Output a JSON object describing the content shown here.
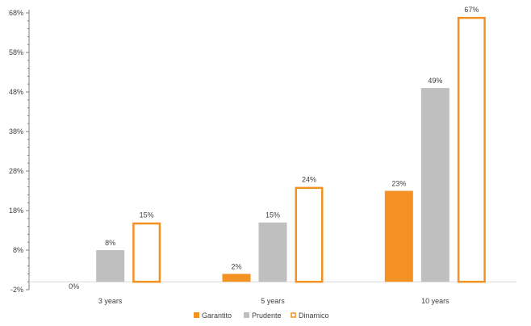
{
  "chart_data": {
    "type": "bar",
    "categories": [
      "3 years",
      "5 years",
      "10 years"
    ],
    "series": [
      {
        "name": "Garantito",
        "values": [
          0,
          2,
          23
        ],
        "labels": [
          "0%",
          "2%",
          "23%"
        ],
        "style": "solid",
        "color": "#F39222"
      },
      {
        "name": "Prudente",
        "values": [
          8,
          15,
          49
        ],
        "labels": [
          "8%",
          "15%",
          "49%"
        ],
        "style": "solid",
        "color": "#BFBFBF"
      },
      {
        "name": "Dinamico",
        "values": [
          15,
          24,
          67
        ],
        "labels": [
          "15%",
          "24%",
          "67%"
        ],
        "style": "outline",
        "color": "#F39222"
      }
    ],
    "y_ticks": [
      -2,
      8,
      18,
      28,
      38,
      48,
      58,
      68
    ],
    "y_tick_labels": [
      "-2%",
      "8%",
      "18%",
      "28%",
      "38%",
      "48%",
      "58%",
      "68%"
    ],
    "ylim": [
      -2,
      68
    ],
    "title": "",
    "xlabel": "",
    "ylabel": "",
    "grid": false,
    "legend_position": "bottom-center",
    "colors": {
      "axis": "#7F7F7F",
      "text": "#404040",
      "baseline": "#D9D9D9"
    }
  }
}
